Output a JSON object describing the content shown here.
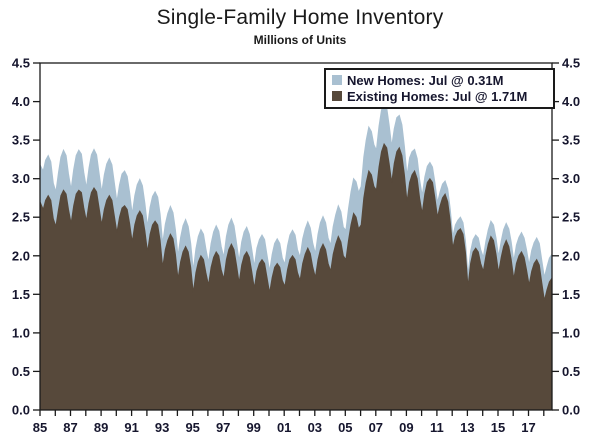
{
  "title": "Single-Family Home Inventory",
  "subtitle": "Millions of Units",
  "legend": {
    "items": [
      {
        "name": "new-homes",
        "label": "New Homes: Jul @ 0.31M",
        "color": "#a9c0d1"
      },
      {
        "name": "existing-homes",
        "label": "Existing Homes: Jul @ 1.71M",
        "color": "#57493b"
      }
    ]
  },
  "chart_data": {
    "type": "area",
    "stacked": true,
    "title": "Single-Family Home Inventory",
    "ylabel": "Millions of Units",
    "xlim": [
      1985.0,
      2018.54
    ],
    "ylim": [
      0,
      4.5
    ],
    "grid": false,
    "legend_position": "top-right",
    "frame_color": "#1a1a1a",
    "month_offsets": [
      0.04,
      0.21,
      0.37,
      0.54,
      0.71,
      0.87
    ],
    "x_minor_tick_years_step": 1,
    "x_tick_years": [
      1985,
      1987,
      1989,
      1991,
      1993,
      1995,
      1997,
      1999,
      2001,
      2003,
      2005,
      2007,
      2009,
      2011,
      2013,
      2015,
      2017
    ],
    "x_tick_labels": [
      "85",
      "87",
      "89",
      "91",
      "93",
      "95",
      "97",
      "99",
      "01",
      "03",
      "05",
      "07",
      "09",
      "11",
      "13",
      "15",
      "17"
    ],
    "y_tick_values": [
      0,
      0.5,
      1,
      1.5,
      2,
      2.5,
      3,
      3.5,
      4,
      4.5
    ],
    "y_tick_labels": [
      "0.0",
      "0.5",
      "1.0",
      "1.5",
      "2.0",
      "2.5",
      "3.0",
      "3.5",
      "4.0",
      "4.5"
    ],
    "series": [
      {
        "name": "Existing Homes",
        "color": "#57493b",
        "current_label": "Jul @ 1.71M",
        "yearly": [
          [
            1985,
            2.7,
            2.6,
            2.72,
            2.78,
            2.72,
            2.48
          ],
          [
            1986,
            2.38,
            2.6,
            2.78,
            2.85,
            2.8,
            2.6
          ],
          [
            1987,
            2.42,
            2.65,
            2.8,
            2.85,
            2.82,
            2.62
          ],
          [
            1988,
            2.45,
            2.68,
            2.82,
            2.88,
            2.83,
            2.62
          ],
          [
            1989,
            2.4,
            2.6,
            2.72,
            2.78,
            2.72,
            2.52
          ],
          [
            1990,
            2.3,
            2.5,
            2.62,
            2.65,
            2.6,
            2.42
          ],
          [
            1991,
            2.18,
            2.4,
            2.52,
            2.58,
            2.52,
            2.32
          ],
          [
            1992,
            2.05,
            2.28,
            2.4,
            2.45,
            2.4,
            2.2
          ],
          [
            1993,
            1.85,
            2.08,
            2.2,
            2.28,
            2.22,
            2.02
          ],
          [
            1994,
            1.7,
            1.92,
            2.05,
            2.12,
            2.05,
            1.85
          ],
          [
            1995,
            1.52,
            1.78,
            1.92,
            2.0,
            1.95,
            1.78
          ],
          [
            1996,
            1.62,
            1.85,
            1.98,
            2.05,
            2.0,
            1.82
          ],
          [
            1997,
            1.7,
            1.95,
            2.08,
            2.15,
            2.08,
            1.88
          ],
          [
            1998,
            1.65,
            1.88,
            2.0,
            2.05,
            1.98,
            1.8
          ],
          [
            1999,
            1.58,
            1.8,
            1.9,
            1.95,
            1.9,
            1.72
          ],
          [
            2000,
            1.52,
            1.72,
            1.85,
            1.9,
            1.85,
            1.68
          ],
          [
            2001,
            1.6,
            1.82,
            1.95,
            2.0,
            1.95,
            1.78
          ],
          [
            2002,
            1.68,
            1.9,
            2.02,
            2.1,
            2.03,
            1.85
          ],
          [
            2003,
            1.72,
            1.95,
            2.08,
            2.15,
            2.08,
            1.9
          ],
          [
            2004,
            1.8,
            2.02,
            2.15,
            2.25,
            2.18,
            2.0
          ],
          [
            2005,
            1.95,
            2.2,
            2.4,
            2.55,
            2.5,
            2.35
          ],
          [
            2006,
            2.4,
            2.75,
            2.95,
            3.1,
            3.05,
            2.9
          ],
          [
            2007,
            2.85,
            3.15,
            3.35,
            3.45,
            3.4,
            3.2
          ],
          [
            2008,
            2.95,
            3.2,
            3.35,
            3.4,
            3.3,
            3.05
          ],
          [
            2009,
            2.7,
            2.95,
            3.05,
            3.1,
            3.0,
            2.75
          ],
          [
            2010,
            2.55,
            2.8,
            2.95,
            3.0,
            2.95,
            2.75
          ],
          [
            2011,
            2.5,
            2.65,
            2.75,
            2.8,
            2.7,
            2.45
          ],
          [
            2012,
            2.1,
            2.25,
            2.32,
            2.35,
            2.28,
            2.05
          ],
          [
            2013,
            1.6,
            1.9,
            2.05,
            2.1,
            2.05,
            1.9
          ],
          [
            2014,
            1.8,
            2.0,
            2.15,
            2.25,
            2.2,
            2.02
          ],
          [
            2015,
            1.78,
            1.98,
            2.12,
            2.2,
            2.12,
            1.95
          ],
          [
            2016,
            1.7,
            1.9,
            2.0,
            2.05,
            1.98,
            1.82
          ],
          [
            2017,
            1.62,
            1.8,
            1.9,
            1.95,
            1.88,
            1.65
          ],
          [
            2018,
            1.42,
            1.56,
            1.66,
            1.71
          ]
        ]
      },
      {
        "name": "New Homes",
        "color": "#a9c0d1",
        "current_label": "Jul @ 0.31M",
        "yearly": [
          [
            1985,
            0.48,
            0.5,
            0.52,
            0.52,
            0.5,
            0.46
          ],
          [
            1986,
            0.45,
            0.48,
            0.5,
            0.52,
            0.5,
            0.46
          ],
          [
            1987,
            0.44,
            0.47,
            0.5,
            0.52,
            0.5,
            0.46
          ],
          [
            1988,
            0.43,
            0.46,
            0.49,
            0.5,
            0.48,
            0.45
          ],
          [
            1989,
            0.42,
            0.45,
            0.47,
            0.48,
            0.46,
            0.43
          ],
          [
            1990,
            0.4,
            0.42,
            0.44,
            0.45,
            0.43,
            0.4
          ],
          [
            1991,
            0.36,
            0.38,
            0.4,
            0.41,
            0.39,
            0.36
          ],
          [
            1992,
            0.33,
            0.35,
            0.37,
            0.38,
            0.36,
            0.34
          ],
          [
            1993,
            0.31,
            0.33,
            0.35,
            0.36,
            0.34,
            0.32
          ],
          [
            1994,
            0.3,
            0.32,
            0.34,
            0.35,
            0.33,
            0.31
          ],
          [
            1995,
            0.29,
            0.31,
            0.33,
            0.34,
            0.33,
            0.31
          ],
          [
            1996,
            0.29,
            0.31,
            0.33,
            0.34,
            0.32,
            0.3
          ],
          [
            1997,
            0.28,
            0.3,
            0.32,
            0.33,
            0.31,
            0.29
          ],
          [
            1998,
            0.28,
            0.3,
            0.31,
            0.32,
            0.3,
            0.29
          ],
          [
            1999,
            0.28,
            0.3,
            0.31,
            0.32,
            0.31,
            0.29
          ],
          [
            2000,
            0.28,
            0.3,
            0.31,
            0.32,
            0.31,
            0.29
          ],
          [
            2001,
            0.29,
            0.31,
            0.32,
            0.33,
            0.32,
            0.3
          ],
          [
            2002,
            0.3,
            0.32,
            0.33,
            0.34,
            0.33,
            0.31
          ],
          [
            2003,
            0.31,
            0.33,
            0.35,
            0.36,
            0.35,
            0.33
          ],
          [
            2004,
            0.34,
            0.36,
            0.38,
            0.4,
            0.39,
            0.37
          ],
          [
            2005,
            0.38,
            0.41,
            0.43,
            0.45,
            0.46,
            0.47
          ],
          [
            2006,
            0.5,
            0.53,
            0.55,
            0.57,
            0.56,
            0.54
          ],
          [
            2007,
            0.52,
            0.53,
            0.54,
            0.54,
            0.52,
            0.5
          ],
          [
            2008,
            0.47,
            0.45,
            0.44,
            0.42,
            0.4,
            0.37
          ],
          [
            2009,
            0.34,
            0.32,
            0.3,
            0.28,
            0.26,
            0.24
          ],
          [
            2010,
            0.23,
            0.22,
            0.21,
            0.21,
            0.2,
            0.2
          ],
          [
            2011,
            0.19,
            0.18,
            0.18,
            0.17,
            0.17,
            0.16
          ],
          [
            2012,
            0.15,
            0.15,
            0.14,
            0.15,
            0.15,
            0.15
          ],
          [
            2013,
            0.15,
            0.16,
            0.16,
            0.17,
            0.18,
            0.18
          ],
          [
            2014,
            0.18,
            0.19,
            0.19,
            0.2,
            0.2,
            0.21
          ],
          [
            2015,
            0.21,
            0.21,
            0.22,
            0.22,
            0.23,
            0.23
          ],
          [
            2016,
            0.23,
            0.24,
            0.24,
            0.25,
            0.25,
            0.26
          ],
          [
            2017,
            0.26,
            0.27,
            0.27,
            0.28,
            0.28,
            0.29
          ],
          [
            2018,
            0.3,
            0.3,
            0.31,
            0.31
          ]
        ]
      }
    ]
  }
}
